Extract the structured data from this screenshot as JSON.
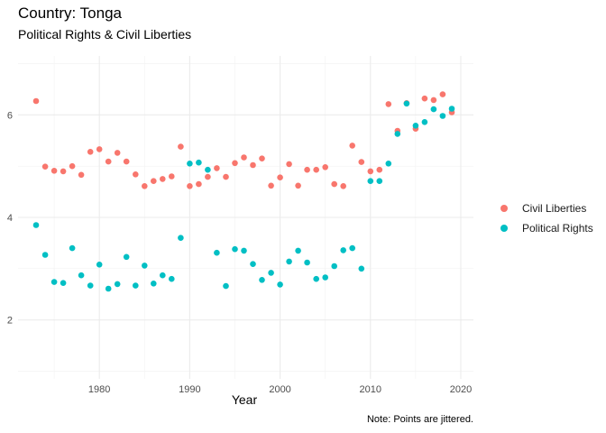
{
  "chart_data": {
    "type": "scatter",
    "title": "Country: Tonga",
    "subtitle": "Political Rights & Civil Liberties",
    "xlabel": "Year",
    "ylabel": "",
    "caption": "Note: Points are jittered.",
    "xlim": [
      1971,
      2021.4
    ],
    "ylim": [
      0.85,
      7.15
    ],
    "x_ticks": [
      1980,
      1990,
      2000,
      2010,
      2020
    ],
    "y_ticks": [
      2,
      4,
      6
    ],
    "grid": true,
    "legend_position": "right",
    "series": [
      {
        "name": "Civil Liberties",
        "color": "#F8766D",
        "points": [
          [
            1973,
            6.27
          ],
          [
            1974,
            4.99
          ],
          [
            1975,
            4.91
          ],
          [
            1976,
            4.9
          ],
          [
            1977,
            5.0
          ],
          [
            1978,
            4.83
          ],
          [
            1979,
            5.28
          ],
          [
            1980,
            5.33
          ],
          [
            1981,
            5.09
          ],
          [
            1982,
            5.26
          ],
          [
            1983,
            5.09
          ],
          [
            1984,
            4.84
          ],
          [
            1985,
            4.61
          ],
          [
            1986,
            4.71
          ],
          [
            1987,
            4.75
          ],
          [
            1988,
            4.8
          ],
          [
            1989,
            5.38
          ],
          [
            1990,
            4.61
          ],
          [
            1991,
            4.65
          ],
          [
            1992,
            4.79
          ],
          [
            1993,
            4.96
          ],
          [
            1994,
            4.79
          ],
          [
            1995,
            5.06
          ],
          [
            1996,
            5.17
          ],
          [
            1997,
            5.02
          ],
          [
            1998,
            5.15
          ],
          [
            1999,
            4.62
          ],
          [
            2000,
            4.78
          ],
          [
            2001,
            5.04
          ],
          [
            2002,
            4.62
          ],
          [
            2003,
            4.93
          ],
          [
            2004,
            4.93
          ],
          [
            2005,
            4.98
          ],
          [
            2006,
            4.65
          ],
          [
            2007,
            4.61
          ],
          [
            2008,
            5.4
          ],
          [
            2009,
            5.08
          ],
          [
            2010,
            4.9
          ],
          [
            2011,
            4.93
          ],
          [
            2012,
            6.21
          ],
          [
            2013,
            5.69
          ],
          [
            2014,
            6.23
          ],
          [
            2015,
            5.73
          ],
          [
            2016,
            6.32
          ],
          [
            2017,
            6.29
          ],
          [
            2018,
            6.4
          ],
          [
            2019,
            6.05
          ]
        ]
      },
      {
        "name": "Political Rights",
        "color": "#00BFC4",
        "points": [
          [
            1973,
            3.85
          ],
          [
            1974,
            3.27
          ],
          [
            1975,
            2.74
          ],
          [
            1976,
            2.72
          ],
          [
            1977,
            3.4
          ],
          [
            1978,
            2.87
          ],
          [
            1979,
            2.67
          ],
          [
            1980,
            3.08
          ],
          [
            1981,
            2.61
          ],
          [
            1982,
            2.7
          ],
          [
            1983,
            3.23
          ],
          [
            1984,
            2.67
          ],
          [
            1985,
            3.06
          ],
          [
            1986,
            2.71
          ],
          [
            1987,
            2.87
          ],
          [
            1988,
            2.8
          ],
          [
            1989,
            3.6
          ],
          [
            1990,
            5.05
          ],
          [
            1991,
            5.07
          ],
          [
            1992,
            4.93
          ],
          [
            1993,
            3.31
          ],
          [
            1994,
            2.66
          ],
          [
            1995,
            3.38
          ],
          [
            1996,
            3.35
          ],
          [
            1997,
            3.09
          ],
          [
            1998,
            2.78
          ],
          [
            1999,
            2.92
          ],
          [
            2000,
            2.69
          ],
          [
            2001,
            3.14
          ],
          [
            2002,
            3.35
          ],
          [
            2003,
            3.12
          ],
          [
            2004,
            2.8
          ],
          [
            2005,
            2.83
          ],
          [
            2006,
            3.05
          ],
          [
            2007,
            3.36
          ],
          [
            2008,
            3.4
          ],
          [
            2009,
            3.0
          ],
          [
            2010,
            4.71
          ],
          [
            2011,
            4.71
          ],
          [
            2012,
            5.05
          ],
          [
            2013,
            5.63
          ],
          [
            2014,
            6.22
          ],
          [
            2015,
            5.79
          ],
          [
            2016,
            5.86
          ],
          [
            2017,
            6.11
          ],
          [
            2018,
            5.98
          ],
          [
            2019,
            6.12
          ]
        ]
      }
    ]
  }
}
